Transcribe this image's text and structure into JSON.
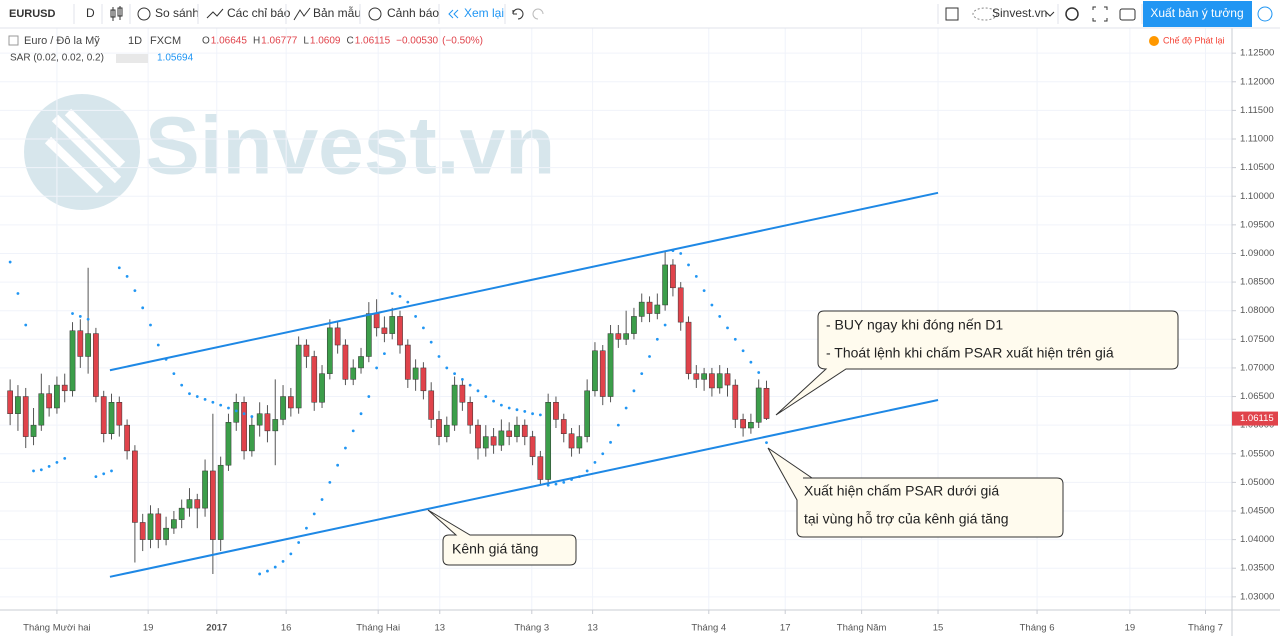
{
  "toolbar": {
    "symbol": "EURUSD",
    "interval": "D",
    "compare": "So sánh",
    "indicators": "Các chỉ báo",
    "templates": "Bản mẫu",
    "alerts": "Cảnh báo",
    "replay": "Xem lại",
    "account": "Sinvest.vn",
    "publish": "Xuất bản ý tưởng"
  },
  "chart_data": {
    "type": "candlestick",
    "instrument": "Euro / Đô la Mỹ",
    "timeframe": "1D",
    "source": "FXCM",
    "ohlc_labels": [
      "O",
      "H",
      "L",
      "C"
    ],
    "change": "−0.00530",
    "change_pct": "(−0.50%)",
    "indicator": "SAR (0.02, 0.02, 0.2)",
    "replay_mode": "Chế độ Phát lại",
    "watermark": "Sinvest.vn",
    "up_color": "#3c9e4a",
    "down_color": "#e0434b",
    "sar_color": "#2196f3",
    "channel_color": "#1e88e5",
    "grid": true,
    "xlim": [
      -1.3,
      156.7
    ],
    "ylim": [
      1.0277,
      1.128
    ],
    "xticks": [
      {
        "value": 6,
        "label": "Tháng Mười hai"
      },
      {
        "value": 17.7,
        "label": "19"
      },
      {
        "value": 26.5,
        "label": "2017"
      },
      {
        "value": 35.4,
        "label": "16"
      },
      {
        "value": 47.2,
        "label": "Tháng Hai"
      },
      {
        "value": 55.1,
        "label": "13"
      },
      {
        "value": 66.9,
        "label": "Tháng 3"
      },
      {
        "value": 74.7,
        "label": "13"
      },
      {
        "value": 89.6,
        "label": "Tháng 4"
      },
      {
        "value": 99.4,
        "label": "17"
      },
      {
        "value": 109.2,
        "label": "Tháng Năm"
      },
      {
        "value": 119,
        "label": "15"
      },
      {
        "value": 131.7,
        "label": "Tháng 6"
      },
      {
        "value": 143.6,
        "label": "19"
      },
      {
        "value": 153.3,
        "label": "Tháng 7"
      }
    ],
    "yticks": [
      {
        "value": 1.03,
        "label": "1.03000"
      },
      {
        "value": 1.035,
        "label": "1.03500"
      },
      {
        "value": 1.04,
        "label": "1.04000"
      },
      {
        "value": 1.045,
        "label": "1.04500"
      },
      {
        "value": 1.05,
        "label": "1.05000"
      },
      {
        "value": 1.055,
        "label": "1.05500"
      },
      {
        "value": 1.06,
        "label": "1.06000"
      },
      {
        "value": 1.065,
        "label": "1.06500"
      },
      {
        "value": 1.07,
        "label": "1.07000"
      },
      {
        "value": 1.075,
        "label": "1.07500"
      },
      {
        "value": 1.08,
        "label": "1.08000"
      },
      {
        "value": 1.085,
        "label": "1.08500"
      },
      {
        "value": 1.09,
        "label": "1.09000"
      },
      {
        "value": 1.095,
        "label": "1.09500"
      },
      {
        "value": 1.1,
        "label": "1.10000"
      },
      {
        "value": 1.105,
        "label": "1.10500"
      },
      {
        "value": 1.11,
        "label": "1.11000"
      },
      {
        "value": 1.115,
        "label": "1.11500"
      },
      {
        "value": 1.12,
        "label": "1.12000"
      },
      {
        "value": 1.125,
        "label": "1.12500"
      }
    ],
    "candles": [
      [
        1.066,
        1.068,
        1.06,
        1.062
      ],
      [
        1.062,
        1.067,
        1.059,
        1.065
      ],
      [
        1.065,
        1.0665,
        1.056,
        1.058
      ],
      [
        1.058,
        1.063,
        1.0565,
        1.06
      ],
      [
        1.06,
        1.069,
        1.059,
        1.0655
      ],
      [
        1.0655,
        1.067,
        1.0615,
        1.063
      ],
      [
        1.063,
        1.0685,
        1.062,
        1.067
      ],
      [
        1.067,
        1.069,
        1.064,
        1.066
      ],
      [
        1.066,
        1.078,
        1.065,
        1.0765
      ],
      [
        1.0765,
        1.0785,
        1.07,
        1.072
      ],
      [
        1.072,
        1.0875,
        1.069,
        1.076
      ],
      [
        1.076,
        1.077,
        1.064,
        1.065
      ],
      [
        1.065,
        1.066,
        1.057,
        1.0585
      ],
      [
        1.0585,
        1.0655,
        1.0575,
        1.064
      ],
      [
        1.064,
        1.065,
        1.058,
        1.06
      ],
      [
        1.06,
        1.061,
        1.054,
        1.0555
      ],
      [
        1.0555,
        1.0565,
        1.036,
        1.043
      ],
      [
        1.043,
        1.0445,
        1.038,
        1.04
      ],
      [
        1.04,
        1.046,
        1.0385,
        1.0445
      ],
      [
        1.0445,
        1.0455,
        1.0385,
        1.04
      ],
      [
        1.04,
        1.044,
        1.039,
        1.042
      ],
      [
        1.042,
        1.045,
        1.041,
        1.0435
      ],
      [
        1.0435,
        1.047,
        1.042,
        1.0455
      ],
      [
        1.0455,
        1.049,
        1.044,
        1.047
      ],
      [
        1.047,
        1.048,
        1.042,
        1.0455
      ],
      [
        1.0455,
        1.054,
        1.044,
        1.052
      ],
      [
        1.052,
        1.062,
        1.034,
        1.04
      ],
      [
        1.04,
        1.0545,
        1.038,
        1.053
      ],
      [
        1.053,
        1.062,
        1.052,
        1.0605
      ],
      [
        1.0605,
        1.0655,
        1.059,
        1.064
      ],
      [
        1.064,
        1.065,
        1.054,
        1.0555
      ],
      [
        1.0555,
        1.0615,
        1.0545,
        1.06
      ],
      [
        1.06,
        1.064,
        1.058,
        1.062
      ],
      [
        1.062,
        1.0635,
        1.057,
        1.059
      ],
      [
        1.059,
        1.068,
        1.053,
        1.061
      ],
      [
        1.061,
        1.067,
        1.06,
        1.065
      ],
      [
        1.065,
        1.0665,
        1.0615,
        1.063
      ],
      [
        1.063,
        1.0755,
        1.062,
        1.074
      ],
      [
        1.074,
        1.075,
        1.07,
        1.072
      ],
      [
        1.072,
        1.073,
        1.0625,
        1.064
      ],
      [
        1.064,
        1.0705,
        1.063,
        1.069
      ],
      [
        1.069,
        1.0785,
        1.068,
        1.077
      ],
      [
        1.077,
        1.078,
        1.0725,
        1.074
      ],
      [
        1.074,
        1.075,
        1.067,
        1.068
      ],
      [
        1.068,
        1.0715,
        1.067,
        1.07
      ],
      [
        1.07,
        1.0735,
        1.069,
        1.072
      ],
      [
        1.072,
        1.0815,
        1.071,
        1.0795
      ],
      [
        1.0795,
        1.082,
        1.0755,
        1.077
      ],
      [
        1.077,
        1.079,
        1.0745,
        1.076
      ],
      [
        1.076,
        1.0805,
        1.075,
        1.079
      ],
      [
        1.079,
        1.08,
        1.0725,
        1.074
      ],
      [
        1.074,
        1.075,
        1.0665,
        1.068
      ],
      [
        1.068,
        1.0715,
        1.066,
        1.07
      ],
      [
        1.07,
        1.071,
        1.0645,
        1.066
      ],
      [
        1.066,
        1.0675,
        1.0595,
        1.061
      ],
      [
        1.061,
        1.0625,
        1.0565,
        1.058
      ],
      [
        1.058,
        1.0615,
        1.057,
        1.06
      ],
      [
        1.06,
        1.0685,
        1.059,
        1.067
      ],
      [
        1.067,
        1.068,
        1.0625,
        1.064
      ],
      [
        1.064,
        1.065,
        1.0585,
        1.06
      ],
      [
        1.06,
        1.061,
        1.054,
        1.056
      ],
      [
        1.056,
        1.06,
        1.0545,
        1.058
      ],
      [
        1.058,
        1.0595,
        1.055,
        1.0565
      ],
      [
        1.0565,
        1.061,
        1.0555,
        1.059
      ],
      [
        1.059,
        1.0605,
        1.0565,
        1.058
      ],
      [
        1.058,
        1.0615,
        1.057,
        1.06
      ],
      [
        1.06,
        1.061,
        1.0565,
        1.058
      ],
      [
        1.058,
        1.059,
        1.053,
        1.0545
      ],
      [
        1.0545,
        1.0555,
        1.0495,
        1.0505
      ],
      [
        1.0505,
        1.0655,
        1.05,
        1.064
      ],
      [
        1.064,
        1.065,
        1.0595,
        1.061
      ],
      [
        1.061,
        1.062,
        1.057,
        1.0585
      ],
      [
        1.0585,
        1.0595,
        1.0545,
        1.056
      ],
      [
        1.056,
        1.06,
        1.055,
        1.058
      ],
      [
        1.058,
        1.068,
        1.057,
        1.066
      ],
      [
        1.066,
        1.0745,
        1.065,
        1.073
      ],
      [
        1.073,
        1.074,
        1.0635,
        1.065
      ],
      [
        1.065,
        1.0775,
        1.064,
        1.076
      ],
      [
        1.076,
        1.0775,
        1.0735,
        1.075
      ],
      [
        1.075,
        1.08,
        1.074,
        1.076
      ],
      [
        1.076,
        1.0805,
        1.075,
        1.079
      ],
      [
        1.079,
        1.083,
        1.078,
        1.0815
      ],
      [
        1.0815,
        1.0825,
        1.078,
        1.0795
      ],
      [
        1.0795,
        1.083,
        1.0785,
        1.081
      ],
      [
        1.081,
        1.0905,
        1.08,
        1.088
      ],
      [
        1.088,
        1.089,
        1.0825,
        1.084
      ],
      [
        1.084,
        1.085,
        1.0765,
        1.078
      ],
      [
        1.078,
        1.079,
        1.068,
        1.069
      ],
      [
        1.069,
        1.0705,
        1.0665,
        1.068
      ],
      [
        1.068,
        1.07,
        1.066,
        1.069
      ],
      [
        1.069,
        1.07,
        1.065,
        1.0665
      ],
      [
        1.0665,
        1.0705,
        1.0655,
        1.069
      ],
      [
        1.069,
        1.07,
        1.065,
        1.067
      ],
      [
        1.067,
        1.068,
        1.0595,
        1.061
      ],
      [
        1.061,
        1.062,
        1.058,
        1.0595
      ],
      [
        1.0595,
        1.062,
        1.0585,
        1.0605
      ],
      [
        1.0605,
        1.068,
        1.0595,
        1.0665
      ],
      [
        1.06645,
        1.06777,
        1.0609,
        1.06115
      ]
    ],
    "sar": [
      1.0885,
      1.083,
      1.0775,
      1.052,
      1.0522,
      1.0528,
      1.0535,
      1.0542,
      1.0795,
      1.079,
      1.0785,
      1.051,
      1.0515,
      1.052,
      1.0875,
      1.086,
      1.0835,
      1.0805,
      1.0775,
      1.074,
      1.0715,
      1.069,
      1.067,
      1.0655,
      1.065,
      1.0645,
      1.064,
      1.0635,
      1.063,
      1.0625,
      1.062,
      1.0615,
      1.034,
      1.0345,
      1.0352,
      1.0362,
      1.0375,
      1.0395,
      1.042,
      1.0445,
      1.047,
      1.05,
      1.053,
      1.056,
      1.059,
      1.062,
      1.065,
      1.07,
      1.0725,
      1.083,
      1.0825,
      1.0815,
      1.079,
      1.077,
      1.0745,
      1.072,
      1.07,
      1.069,
      1.068,
      1.067,
      1.066,
      1.065,
      1.0642,
      1.0635,
      1.063,
      1.0627,
      1.0624,
      1.062,
      1.0618,
      1.0495,
      1.0497,
      1.05,
      1.0505,
      1.051,
      1.052,
      1.0535,
      1.055,
      1.057,
      1.06,
      1.063,
      1.066,
      1.069,
      1.072,
      1.075,
      1.0775,
      1.0905,
      1.09,
      1.088,
      1.086,
      1.0835,
      1.081,
      1.079,
      1.077,
      1.075,
      1.073,
      1.071,
      1.0692,
      1.05694
    ],
    "channel": [
      {
        "x": [
          12.8,
          119
        ],
        "y": [
          1.0696,
          1.1006
        ]
      },
      {
        "x": [
          12.8,
          119
        ],
        "y": [
          1.0335,
          1.0644
        ]
      }
    ],
    "annotations": {
      "buy": "- BUY ngay khi đóng nến D1",
      "exit": "- Thoát lệnh khi chấm PSAR xuất hiện trên giá",
      "psar1": "Xuất hiện chấm PSAR dưới giá",
      "psar2": "tại vùng hỗ trợ của kênh giá tăng",
      "channel": "Kênh giá tăng"
    }
  }
}
